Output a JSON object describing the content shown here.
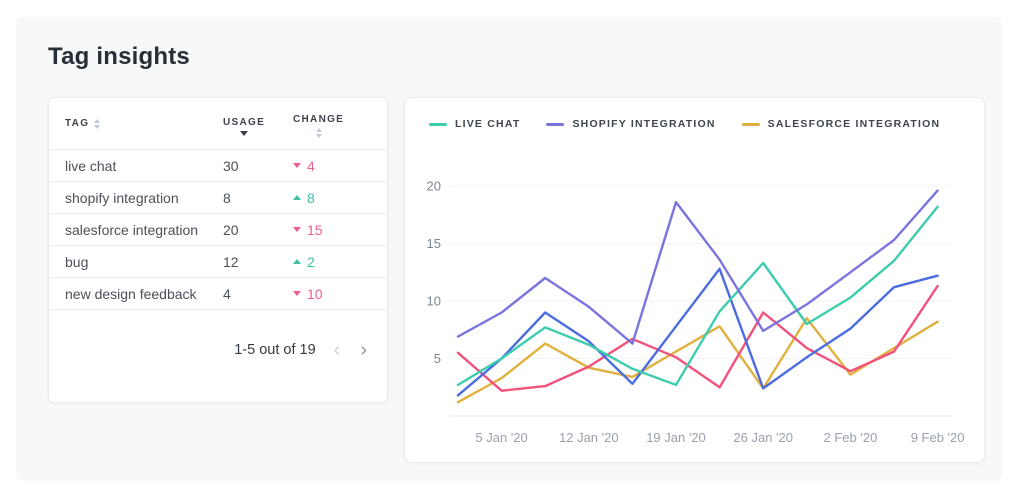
{
  "page": {
    "title": "Tag insights"
  },
  "table": {
    "headers": [
      {
        "label": "TAG",
        "sort": "both"
      },
      {
        "label": "USAGE",
        "sort": "desc"
      },
      {
        "label": "CHANGE",
        "sort": "both"
      }
    ],
    "rows": [
      {
        "tag": "live chat",
        "usage": "30",
        "change": "4",
        "direction": "down"
      },
      {
        "tag": "shopify integration",
        "usage": "8",
        "change": "8",
        "direction": "up"
      },
      {
        "tag": "salesforce integration",
        "usage": "20",
        "change": "15",
        "direction": "down"
      },
      {
        "tag": "bug",
        "usage": "12",
        "change": "2",
        "direction": "up"
      },
      {
        "tag": "new design feedback",
        "usage": "4",
        "change": "10",
        "direction": "down"
      }
    ],
    "pagination": {
      "label": "1-5 out of 19",
      "prev": "‹",
      "next": "›"
    }
  },
  "colors": {
    "up": "#3ec1a0",
    "down": "#f0608c",
    "grid": "#f1f3f6",
    "axis_line": "#e6e9ed",
    "y_tick_text": "#7d858f",
    "x_tick_text": "#99a1ad"
  },
  "chart_data": {
    "type": "line",
    "title": "",
    "x_tick_labels": [
      "5 Jan '20",
      "12 Jan '20",
      "19 Jan '20",
      "26 Jan '20",
      "2 Feb '20",
      "9 Feb '20"
    ],
    "x_points": 12,
    "x_label_indices": [
      1,
      3,
      5,
      7,
      9,
      11
    ],
    "y_ticks": [
      5,
      10,
      15,
      20
    ],
    "ylim": [
      0,
      20
    ],
    "grid": "horizontal",
    "legend_position": "top-left",
    "legend": [
      "LIVE CHAT",
      "SHOPIFY INTEGRATION",
      "SALESFORCE INTEGRATION"
    ],
    "series": [
      {
        "name": "LIVE CHAT",
        "color": "#3eccae",
        "in_legend": true,
        "values": [
          2.7,
          5.0,
          7.7,
          6.2,
          4.1,
          2.7,
          9.1,
          13.3,
          8.0,
          10.3,
          13.5,
          18.2
        ]
      },
      {
        "name": "SHOPIFY INTEGRATION",
        "color": "#7b74de",
        "in_legend": true,
        "values": [
          6.9,
          9.0,
          12.0,
          9.5,
          6.3,
          18.6,
          13.6,
          7.4,
          9.7,
          12.5,
          15.3,
          19.6
        ]
      },
      {
        "name": "SALESFORCE INTEGRATION",
        "color": "#e0b13f",
        "in_legend": true,
        "values": [
          1.2,
          3.3,
          6.3,
          4.2,
          3.4,
          5.6,
          7.8,
          2.4,
          8.5,
          3.6,
          5.9,
          8.2
        ]
      },
      {
        "name": "",
        "color": "#4b6be0",
        "in_legend": false,
        "values": [
          1.8,
          5.0,
          9.0,
          6.5,
          2.8,
          7.8,
          12.8,
          2.4,
          5.1,
          7.6,
          11.2,
          12.2
        ]
      },
      {
        "name": "",
        "color": "#f2517b",
        "in_legend": false,
        "values": [
          5.5,
          2.2,
          2.6,
          4.3,
          6.7,
          5.1,
          2.5,
          9.0,
          5.9,
          3.9,
          5.6,
          11.3
        ]
      }
    ]
  }
}
